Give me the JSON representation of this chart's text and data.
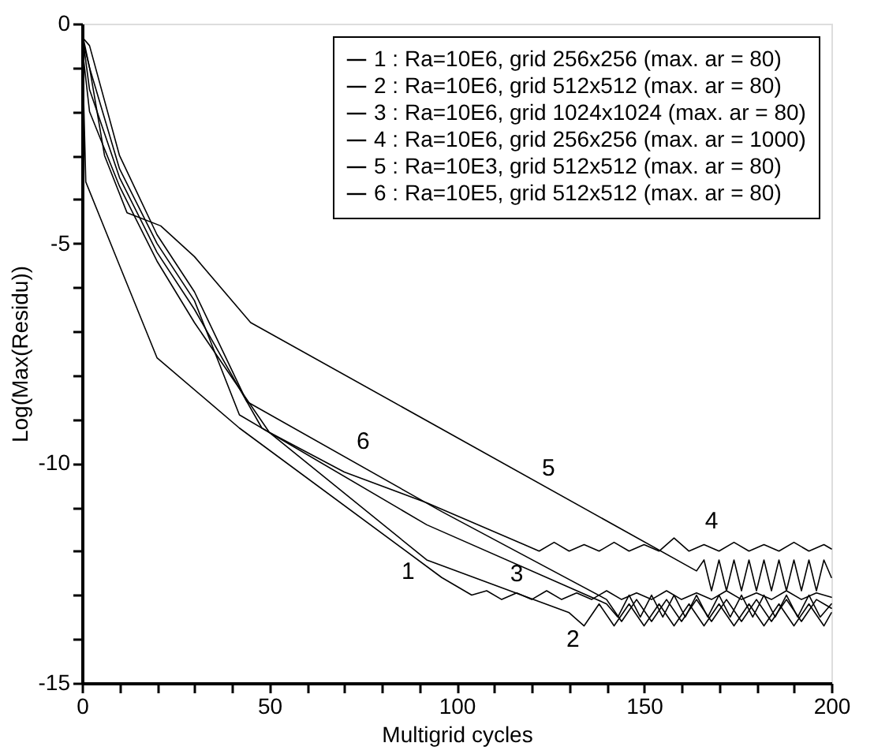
{
  "chart_data": {
    "type": "line",
    "xlabel": "Multigrid cycles",
    "ylabel": "Log(Max(Residu))",
    "xlim": [
      0,
      200
    ],
    "ylim": [
      -15,
      0
    ],
    "xticks": [
      0,
      {
        "value": 10,
        "label": null
      },
      {
        "value": 20,
        "label": null
      },
      {
        "value": 30,
        "label": null
      },
      {
        "value": 40,
        "label": null
      },
      50,
      {
        "value": 60,
        "label": null
      },
      {
        "value": 70,
        "label": null
      },
      {
        "value": 80,
        "label": null
      },
      {
        "value": 90,
        "label": null
      },
      100,
      {
        "value": 110,
        "label": null
      },
      {
        "value": 120,
        "label": null
      },
      {
        "value": 130,
        "label": null
      },
      {
        "value": 140,
        "label": null
      },
      150,
      {
        "value": 160,
        "label": null
      },
      {
        "value": 170,
        "label": null
      },
      {
        "value": 180,
        "label": null
      },
      {
        "value": 190,
        "label": null
      },
      200
    ],
    "yticks": [
      -15,
      {
        "value": -14,
        "label": null
      },
      {
        "value": -13,
        "label": null
      },
      {
        "value": -12,
        "label": null
      },
      {
        "value": -11,
        "label": null
      },
      -10,
      {
        "value": -9,
        "label": null
      },
      {
        "value": -8,
        "label": null
      },
      {
        "value": -7,
        "label": null
      },
      {
        "value": -6,
        "label": null
      },
      -5,
      {
        "value": -4,
        "label": null
      },
      {
        "value": -3,
        "label": null
      },
      {
        "value": -2,
        "label": null
      },
      {
        "value": -1,
        "label": null
      },
      0
    ],
    "grid": false,
    "legend": "top right",
    "marker": "none",
    "line_style": "solid",
    "series": [
      {
        "name": "1 : Ra=10E6, grid 256x256 (max. ar = 80)",
        "color": "#000000",
        "x": [
          0,
          1,
          10,
          20,
          42,
          96,
          104,
          108,
          112,
          116,
          120,
          124,
          128,
          132,
          136,
          140,
          144,
          148,
          152,
          156,
          160,
          164,
          168,
          172,
          176,
          180,
          184,
          188,
          192,
          196,
          200
        ],
        "values": [
          -0.3,
          -3.6,
          -5.5,
          -7.6,
          -9.2,
          -12.6,
          -13.0,
          -12.9,
          -13.1,
          -12.95,
          -13.1,
          -12.9,
          -13.1,
          -12.95,
          -13.1,
          -12.9,
          -13.1,
          -12.95,
          -13.1,
          -12.9,
          -13.1,
          -12.95,
          -13.1,
          -12.9,
          -13.1,
          -12.95,
          -13.1,
          -12.9,
          -13.1,
          -12.95,
          -13.05
        ]
      },
      {
        "name": "2 : Ra=10E6, grid 512x512 (max. ar = 80)",
        "color": "#000000",
        "x": [
          0,
          2,
          10,
          20,
          30,
          50,
          92,
          130,
          134,
          138,
          142,
          146,
          150,
          154,
          158,
          162,
          166,
          170,
          174,
          178,
          182,
          186,
          190,
          194,
          198,
          200
        ],
        "values": [
          -0.5,
          -2.0,
          -3.7,
          -5.4,
          -6.8,
          -9.3,
          -12.2,
          -13.4,
          -13.7,
          -13.2,
          -13.7,
          -13.2,
          -13.7,
          -13.2,
          -13.7,
          -13.2,
          -13.7,
          -13.2,
          -13.7,
          -13.2,
          -13.7,
          -13.2,
          -13.7,
          -13.2,
          -13.7,
          -13.4
        ]
      },
      {
        "name": "3 : Ra=10E6, grid 1024x1024 (max. ar = 80)",
        "color": "#000000",
        "x": [
          0,
          2,
          10,
          20,
          30,
          48,
          92,
          140,
          143,
          146,
          149,
          152,
          155,
          158,
          161,
          164,
          167,
          170,
          173,
          176,
          179,
          182,
          185,
          188,
          191,
          194,
          197,
          200
        ],
        "values": [
          -0.2,
          -1.5,
          -3.5,
          -5.2,
          -6.5,
          -9.2,
          -11.4,
          -13.2,
          -13.5,
          -13.0,
          -13.5,
          -13.0,
          -13.5,
          -13.0,
          -13.5,
          -13.0,
          -13.5,
          -13.0,
          -13.5,
          -13.0,
          -13.5,
          -13.0,
          -13.5,
          -13.0,
          -13.5,
          -13.0,
          -13.5,
          -13.2
        ]
      },
      {
        "name": "4 : Ra=10E6, grid 256x256 (max. ar = 1000)",
        "color": "#000000",
        "x": [
          0,
          2,
          10,
          20,
          30,
          42,
          50,
          70,
          92,
          118,
          122,
          126,
          130,
          134,
          138,
          142,
          146,
          150,
          154,
          158,
          162,
          166,
          170,
          174,
          178,
          182,
          186,
          190,
          194,
          198,
          200
        ],
        "values": [
          -0.3,
          -1.0,
          -3.3,
          -5.0,
          -6.3,
          -8.9,
          -9.3,
          -10.2,
          -10.9,
          -11.85,
          -12.0,
          -11.8,
          -12.0,
          -11.85,
          -12.0,
          -11.8,
          -12.0,
          -11.85,
          -12.0,
          -11.7,
          -12.0,
          -11.85,
          -12.0,
          -11.8,
          -12.0,
          -11.85,
          -12.0,
          -11.8,
          -12.0,
          -11.85,
          -11.95
        ]
      },
      {
        "name": "5 : Ra=10E3, grid 512x512 (max. ar = 80)",
        "color": "#000000",
        "x": [
          0,
          2,
          6,
          12,
          21,
          30,
          45,
          164,
          166,
          168,
          170,
          172,
          174,
          176,
          178,
          180,
          182,
          184,
          186,
          188,
          190,
          192,
          194,
          196,
          198,
          200
        ],
        "values": [
          -0.2,
          -1.0,
          -3.0,
          -4.3,
          -4.6,
          -5.3,
          -6.8,
          -12.45,
          -12.2,
          -12.9,
          -12.2,
          -12.9,
          -12.2,
          -12.9,
          -12.2,
          -12.9,
          -12.2,
          -12.9,
          -12.2,
          -12.9,
          -12.2,
          -12.9,
          -12.2,
          -12.9,
          -12.2,
          -12.6
        ]
      },
      {
        "name": "6 : Ra=10E5, grid 512x512 (max. ar = 80)",
        "color": "#000000",
        "x": [
          0,
          2,
          10,
          20,
          30,
          44,
          96,
          140,
          144,
          148,
          152,
          156,
          160,
          164,
          168,
          172,
          176,
          180,
          184,
          188,
          192,
          196,
          200
        ],
        "values": [
          -0.3,
          -0.5,
          -3.0,
          -4.8,
          -6.1,
          -8.6,
          -11.1,
          -13.1,
          -13.6,
          -13.1,
          -13.6,
          -13.1,
          -13.6,
          -13.1,
          -13.6,
          -13.1,
          -13.6,
          -13.1,
          -13.6,
          -13.1,
          -13.6,
          -13.1,
          -13.3
        ]
      }
    ],
    "annotations": [
      "1",
      "2",
      "3",
      "4",
      "5",
      "6"
    ]
  }
}
